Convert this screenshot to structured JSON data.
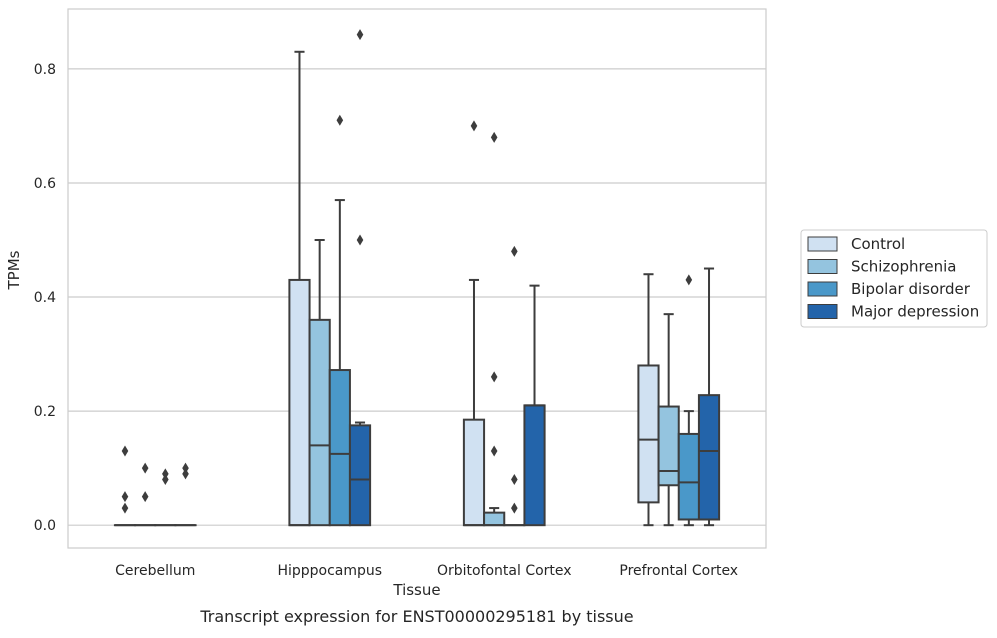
{
  "chart_data": {
    "type": "box",
    "caption": "Transcript expression for ENST00000295181 by tissue",
    "xlabel": "Tissue",
    "ylabel": "TPMs",
    "ylim": [
      -0.04,
      0.905
    ],
    "yticks": [
      0.0,
      0.2,
      0.4,
      0.6,
      0.8
    ],
    "ytick_labels": [
      "0.0",
      "0.2",
      "0.4",
      "0.6",
      "0.8"
    ],
    "grid": true,
    "legend_position": "right",
    "categories": [
      "Cerebellum",
      "Hipppocampus",
      "Orbitofontal Cortex",
      "Prefrontal Cortex"
    ],
    "series": [
      {
        "name": "Control",
        "color": "#d0e1f2",
        "boxes": [
          {
            "q1": 0,
            "median": 0,
            "q3": 0,
            "whisker_low": 0,
            "whisker_high": 0,
            "outliers": [
              0.13,
              0.05,
              0.03
            ]
          },
          {
            "q1": 0,
            "median": 0,
            "q3": 0.43,
            "whisker_low": 0,
            "whisker_high": 0.83,
            "outliers": []
          },
          {
            "q1": 0,
            "median": 0,
            "q3": 0.185,
            "whisker_low": 0,
            "whisker_high": 0.43,
            "outliers": [
              0.7
            ]
          },
          {
            "q1": 0.04,
            "median": 0.15,
            "q3": 0.28,
            "whisker_low": 0,
            "whisker_high": 0.44,
            "outliers": []
          }
        ]
      },
      {
        "name": "Schizophrenia",
        "color": "#94c4df",
        "boxes": [
          {
            "q1": 0,
            "median": 0,
            "q3": 0,
            "whisker_low": 0,
            "whisker_high": 0,
            "outliers": [
              0.1,
              0.05
            ]
          },
          {
            "q1": 0,
            "median": 0.14,
            "q3": 0.36,
            "whisker_low": 0,
            "whisker_high": 0.5,
            "outliers": []
          },
          {
            "q1": 0,
            "median": 0,
            "q3": 0.022,
            "whisker_low": 0,
            "whisker_high": 0.03,
            "outliers": [
              0.68,
              0.26,
              0.13
            ]
          },
          {
            "q1": 0.07,
            "median": 0.095,
            "q3": 0.208,
            "whisker_low": 0,
            "whisker_high": 0.37,
            "outliers": []
          }
        ]
      },
      {
        "name": "Bipolar disorder",
        "color": "#4a98c9",
        "boxes": [
          {
            "q1": 0,
            "median": 0,
            "q3": 0,
            "whisker_low": 0,
            "whisker_high": 0,
            "outliers": [
              0.09,
              0.08
            ]
          },
          {
            "q1": 0,
            "median": 0.125,
            "q3": 0.272,
            "whisker_low": 0,
            "whisker_high": 0.57,
            "outliers": [
              0.71
            ]
          },
          {
            "q1": 0,
            "median": 0,
            "q3": 0,
            "whisker_low": 0,
            "whisker_high": 0,
            "outliers": [
              0.48,
              0.08,
              0.03
            ]
          },
          {
            "q1": 0.01,
            "median": 0.075,
            "q3": 0.16,
            "whisker_low": 0,
            "whisker_high": 0.2,
            "outliers": [
              0.43
            ]
          }
        ]
      },
      {
        "name": "Major depression",
        "color": "#2364aa",
        "boxes": [
          {
            "q1": 0,
            "median": 0,
            "q3": 0,
            "whisker_low": 0,
            "whisker_high": 0,
            "outliers": [
              0.1,
              0.09
            ]
          },
          {
            "q1": 0,
            "median": 0.08,
            "q3": 0.175,
            "whisker_low": 0,
            "whisker_high": 0.18,
            "outliers": [
              0.86,
              0.5
            ]
          },
          {
            "q1": 0,
            "median": 0.21,
            "q3": 0.21,
            "whisker_low": 0,
            "whisker_high": 0.42,
            "outliers": []
          },
          {
            "q1": 0.01,
            "median": 0.13,
            "q3": 0.228,
            "whisker_low": 0,
            "whisker_high": 0.45,
            "outliers": []
          }
        ]
      }
    ]
  }
}
